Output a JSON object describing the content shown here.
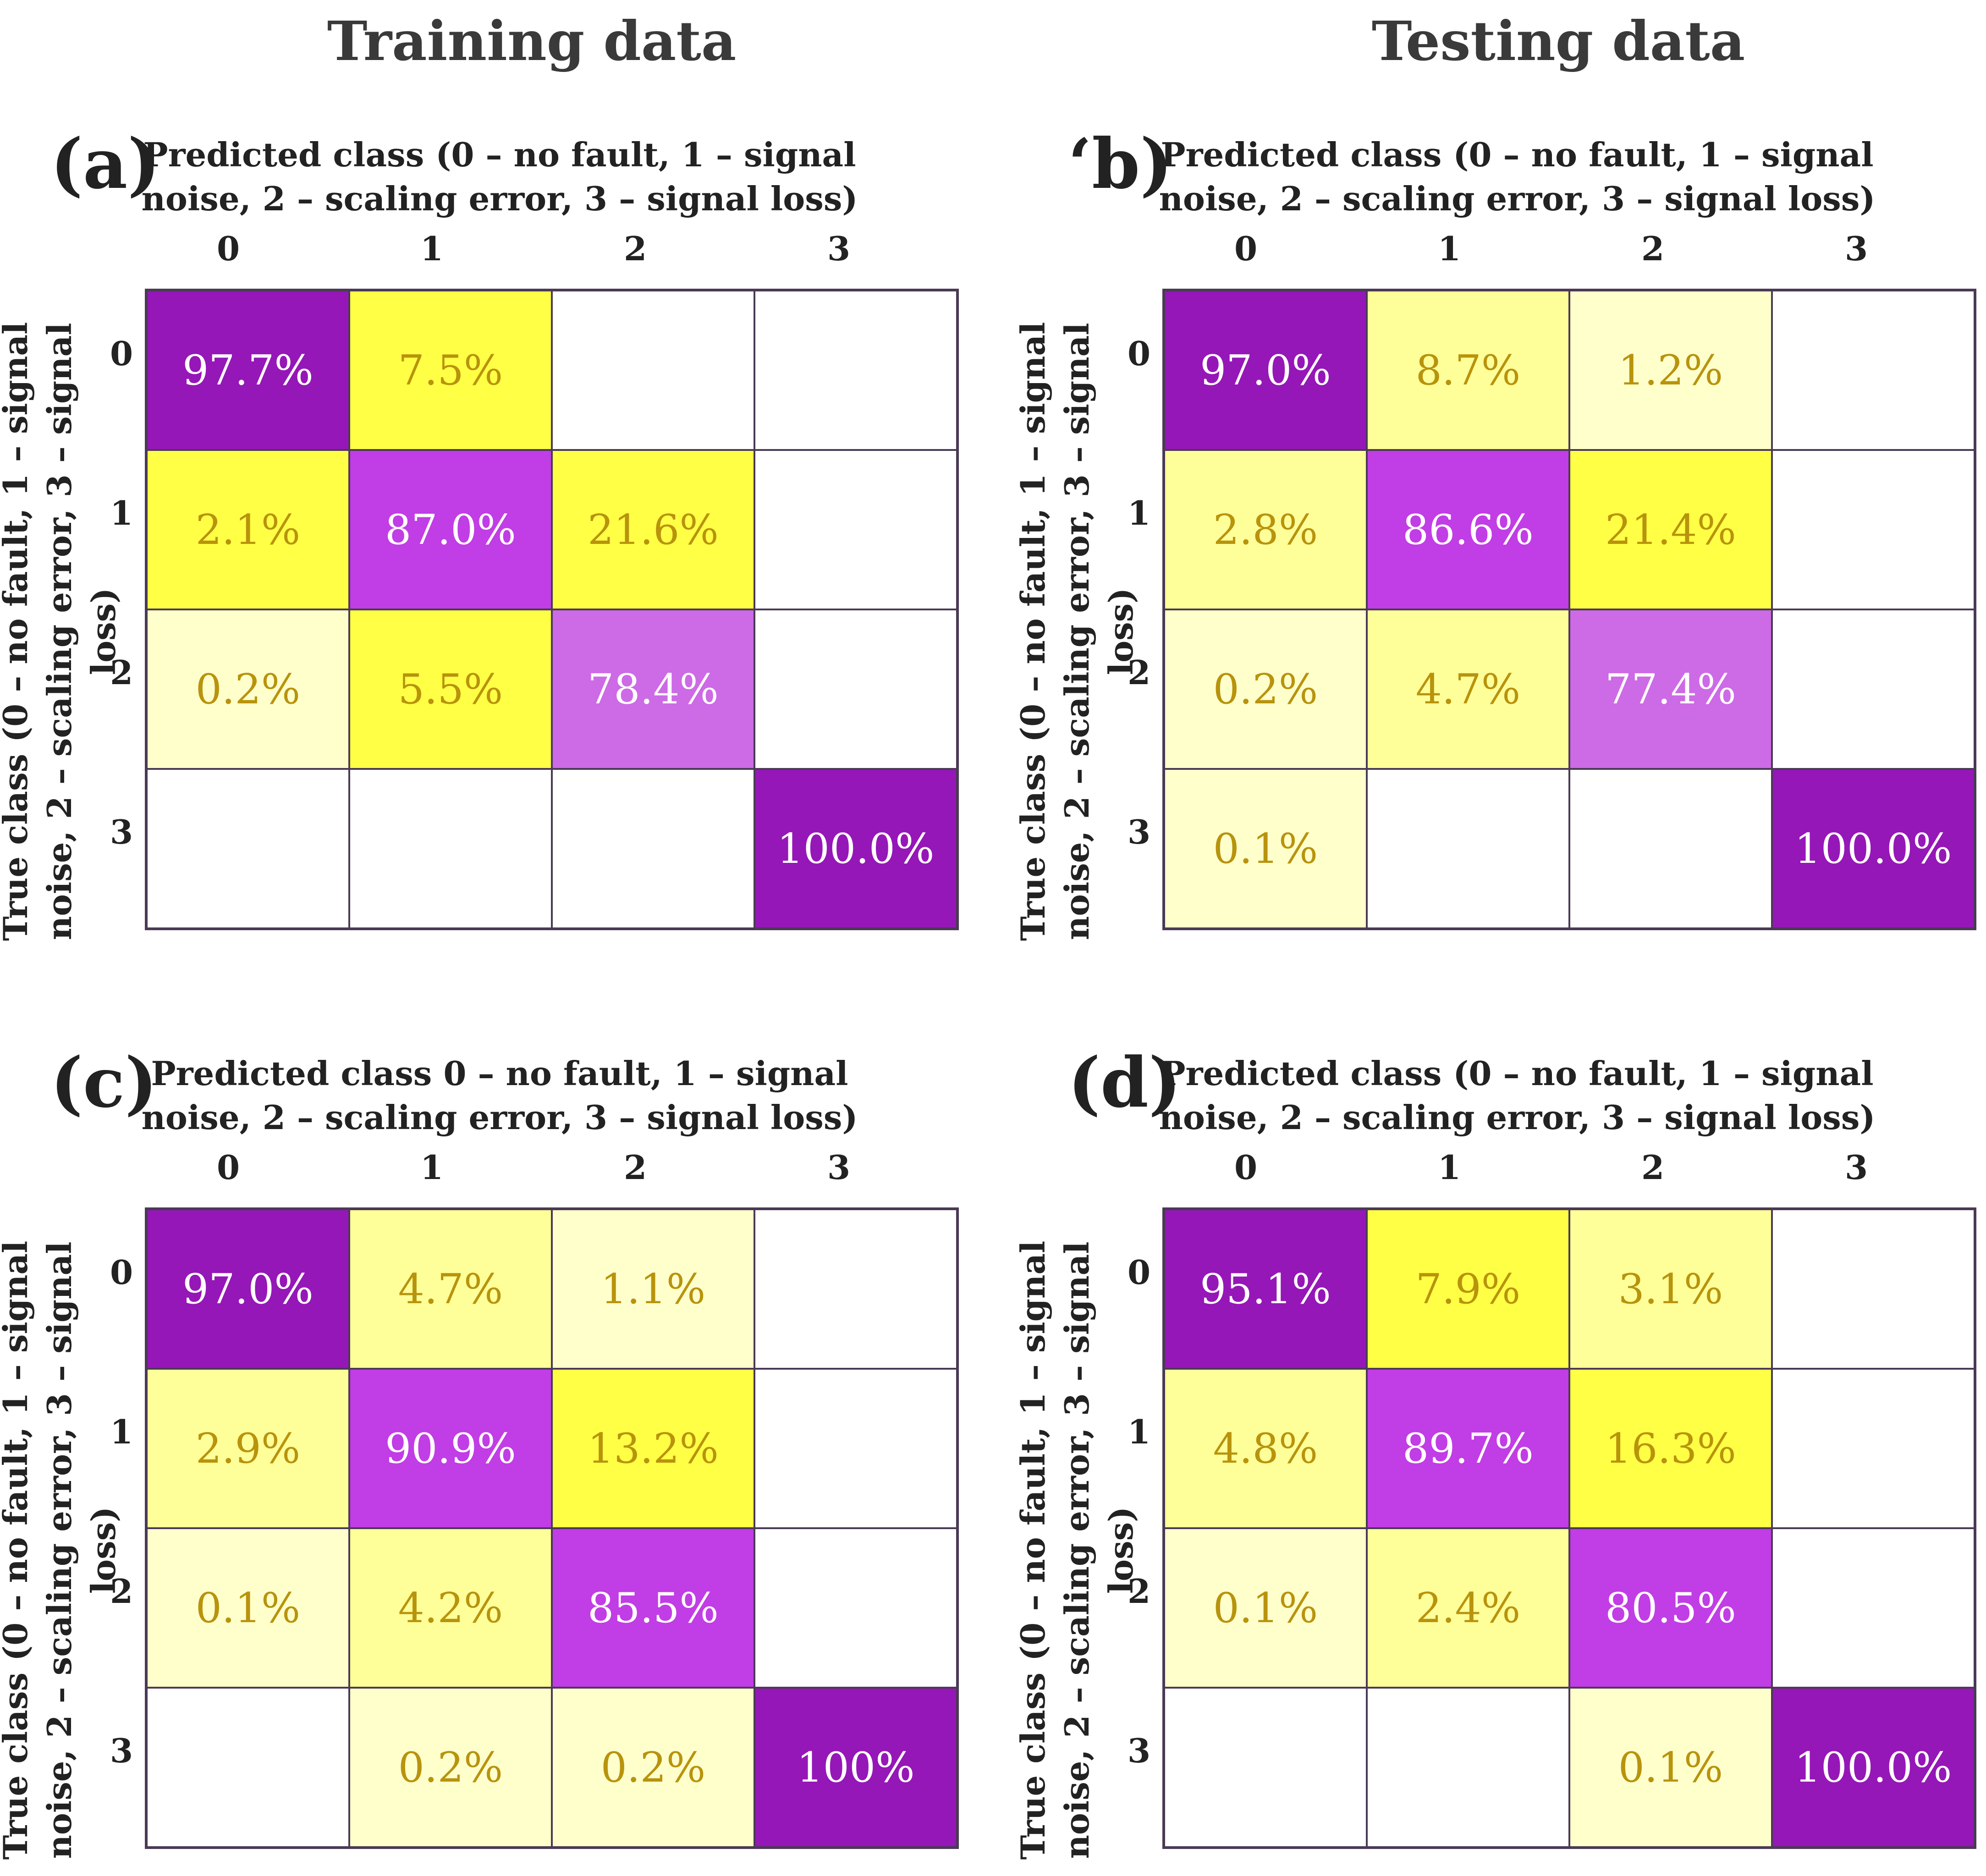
{
  "column_titles": {
    "left": "Training data",
    "right": "Testing data"
  },
  "colors": {
    "purple_dark": "#9517b7",
    "purple_mid": "#c13de5",
    "purple_light": "#cd6ae6",
    "yellow_strong": "#ffff45",
    "yellow_mid": "#ffff99",
    "yellow_light": "#ffffcc",
    "empty": "#ffffff",
    "text_on_purple": "#ffffff",
    "text_on_yellow": "#b8930c"
  },
  "chart_data": [
    {
      "type": "heatmap",
      "label": "(a)",
      "xlabel": "Predicted class (0 – no fault, 1 – signal noise, 2 – scaling error, 3 – signal loss)",
      "ylabel": "True class (0 – no fault, 1 – signal noise, 2 – scaling error, 3 – signal loss)",
      "x_categories": [
        "0",
        "1",
        "2",
        "3"
      ],
      "y_categories": [
        "0",
        "1",
        "2",
        "3"
      ],
      "values": [
        [
          "97.7%",
          "7.5%",
          "",
          ""
        ],
        [
          "2.1%",
          "87.0%",
          "21.6%",
          ""
        ],
        [
          "0.2%",
          "5.5%",
          "78.4%",
          ""
        ],
        [
          "",
          "",
          "",
          "100.0%"
        ]
      ],
      "shades": [
        [
          "purple_dark",
          "yellow_strong",
          "empty",
          "empty"
        ],
        [
          "yellow_strong",
          "purple_mid",
          "yellow_strong",
          "empty"
        ],
        [
          "yellow_light",
          "yellow_strong",
          "purple_light",
          "empty"
        ],
        [
          "empty",
          "empty",
          "empty",
          "purple_dark"
        ]
      ]
    },
    {
      "type": "heatmap",
      "label": "‘b)",
      "xlabel": "Predicted class (0 – no fault, 1 – signal noise, 2 – scaling error, 3 – signal loss)",
      "ylabel": "True class (0 – no fault, 1 – signal noise, 2 – scaling error, 3 – signal loss)",
      "x_categories": [
        "0",
        "1",
        "2",
        "3"
      ],
      "y_categories": [
        "0",
        "1",
        "2",
        "3"
      ],
      "values": [
        [
          "97.0%",
          "8.7%",
          "1.2%",
          ""
        ],
        [
          "2.8%",
          "86.6%",
          "21.4%",
          ""
        ],
        [
          "0.2%",
          "4.7%",
          "77.4%",
          ""
        ],
        [
          "0.1%",
          "",
          "",
          "100.0%"
        ]
      ],
      "shades": [
        [
          "purple_dark",
          "yellow_mid",
          "yellow_light",
          "empty"
        ],
        [
          "yellow_mid",
          "purple_mid",
          "yellow_strong",
          "empty"
        ],
        [
          "yellow_light",
          "yellow_mid",
          "purple_light",
          "empty"
        ],
        [
          "yellow_light",
          "empty",
          "empty",
          "purple_dark"
        ]
      ]
    },
    {
      "type": "heatmap",
      "label": "(c)",
      "xlabel": "Predicted class 0 – no fault, 1 – signal noise, 2 – scaling error, 3 – signal loss)",
      "ylabel": "True class (0 – no fault, 1 – signal noise, 2 – scaling error, 3 – signal loss)",
      "x_categories": [
        "0",
        "1",
        "2",
        "3"
      ],
      "y_categories": [
        "0",
        "1",
        "2",
        "3"
      ],
      "values": [
        [
          "97.0%",
          "4.7%",
          "1.1%",
          ""
        ],
        [
          "2.9%",
          "90.9%",
          "13.2%",
          ""
        ],
        [
          "0.1%",
          "4.2%",
          "85.5%",
          ""
        ],
        [
          "",
          "0.2%",
          "0.2%",
          "100%"
        ]
      ],
      "shades": [
        [
          "purple_dark",
          "yellow_mid",
          "yellow_light",
          "empty"
        ],
        [
          "yellow_mid",
          "purple_mid",
          "yellow_strong",
          "empty"
        ],
        [
          "yellow_light",
          "yellow_mid",
          "purple_mid",
          "empty"
        ],
        [
          "empty",
          "yellow_light",
          "yellow_light",
          "purple_dark"
        ]
      ]
    },
    {
      "type": "heatmap",
      "label": "(d)",
      "xlabel": "Predicted class (0 – no fault, 1 – signal noise, 2 – scaling error, 3 – signal loss)",
      "ylabel": "True class (0 – no fault, 1 – signal noise, 2 – scaling error, 3 – signal loss)",
      "x_categories": [
        "0",
        "1",
        "2",
        "3"
      ],
      "y_categories": [
        "0",
        "1",
        "2",
        "3"
      ],
      "values": [
        [
          "95.1%",
          "7.9%",
          "3.1%",
          ""
        ],
        [
          "4.8%",
          "89.7%",
          "16.3%",
          ""
        ],
        [
          "0.1%",
          "2.4%",
          "80.5%",
          ""
        ],
        [
          "",
          "",
          "0.1%",
          "100.0%"
        ]
      ],
      "shades": [
        [
          "purple_dark",
          "yellow_strong",
          "yellow_mid",
          "empty"
        ],
        [
          "yellow_mid",
          "purple_mid",
          "yellow_strong",
          "empty"
        ],
        [
          "yellow_light",
          "yellow_mid",
          "purple_mid",
          "empty"
        ],
        [
          "empty",
          "empty",
          "yellow_light",
          "purple_dark"
        ]
      ]
    }
  ]
}
